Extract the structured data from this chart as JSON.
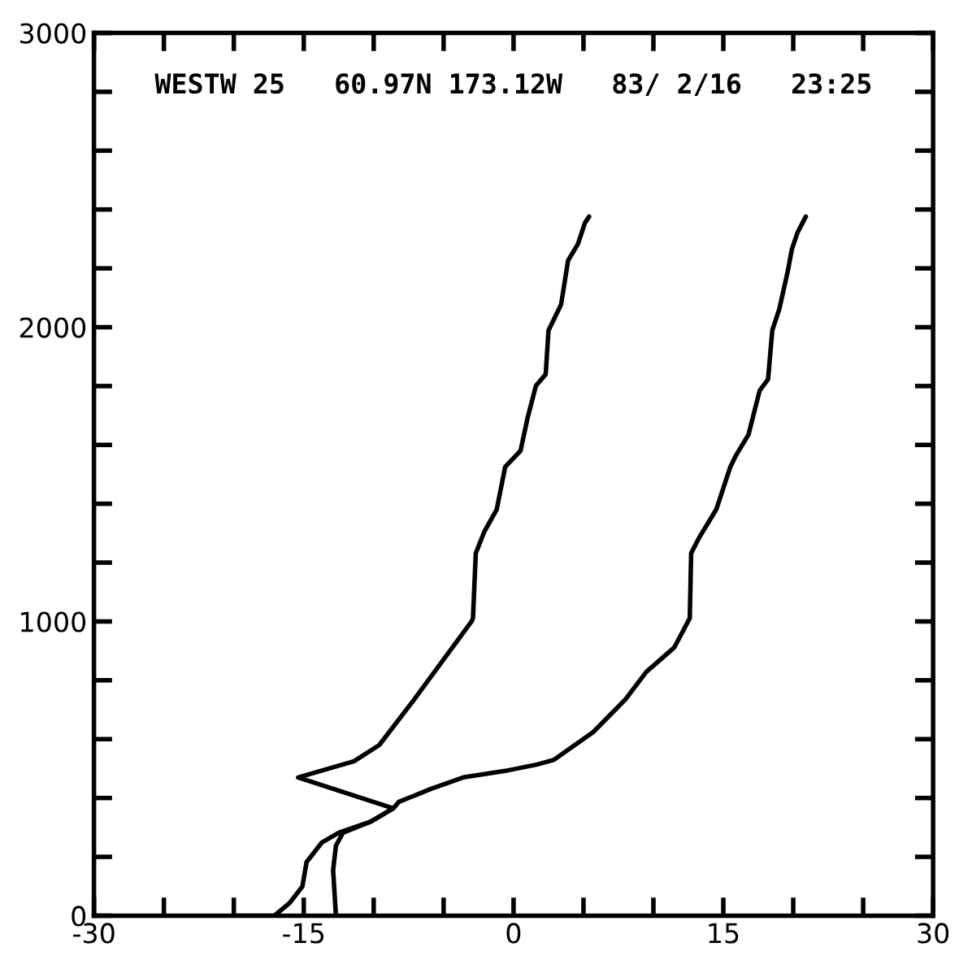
{
  "chart_data": {
    "type": "line",
    "annotations": [
      "WESTW 25   60.97N 173.12W   83/ 2/16   23:25"
    ],
    "xlim": [
      -30,
      30
    ],
    "xticks": [
      -30,
      {
        "value": -25,
        "label": null
      },
      {
        "value": -20,
        "label": null
      },
      -15,
      {
        "value": -10,
        "label": null
      },
      {
        "value": -5,
        "label": null
      },
      0,
      {
        "value": 5,
        "label": null
      },
      {
        "value": 10,
        "label": null
      },
      15,
      {
        "value": 20,
        "label": null
      },
      {
        "value": 25,
        "label": null
      },
      30
    ],
    "ylim": [
      0,
      3000
    ],
    "yticks": [
      0,
      {
        "value": 200,
        "label": null
      },
      {
        "value": 400,
        "label": null
      },
      {
        "value": 600,
        "label": null
      },
      {
        "value": 800,
        "label": null
      },
      1000,
      {
        "value": 1200,
        "label": null
      },
      {
        "value": 1400,
        "label": null
      },
      {
        "value": 1600,
        "label": null
      },
      {
        "value": 1800,
        "label": null
      },
      2000,
      {
        "value": 2200,
        "label": null
      },
      {
        "value": 2400,
        "label": null
      },
      {
        "value": 2600,
        "label": null
      },
      {
        "value": 2800,
        "label": null
      },
      3000
    ],
    "grid": false,
    "marker": "none",
    "line_style": "solid",
    "series": [
      {
        "color": "#000000",
        "x": [
          -12.7,
          -12.9,
          -12.7,
          -12.2,
          -10.2,
          -8.6,
          -8.2,
          -5.9,
          -3.6,
          -0.6,
          1.7,
          2.9,
          4.9,
          5.7,
          8.0,
          9.5,
          11.5,
          12.6,
          12.7,
          13.3,
          14.5,
          15.5,
          15.9,
          16.8,
          17.6,
          18.2,
          18.5,
          19.0,
          19.6,
          19.9,
          20.3,
          20.9
        ],
        "values": [
          0,
          155,
          238,
          282,
          320,
          365,
          387,
          431,
          470,
          492,
          514,
          530,
          597,
          624,
          735,
          829,
          912,
          1011,
          1232,
          1287,
          1381,
          1525,
          1564,
          1635,
          1785,
          1823,
          1989,
          2061,
          2188,
          2265,
          2321,
          2376
        ]
      },
      {
        "color": "#000000",
        "x": [
          -20.0,
          -17.1,
          -16.0,
          -15.1,
          -14.8,
          -13.7,
          -12.5,
          -10.2,
          -8.6,
          -15.4,
          -11.4,
          -9.6,
          -7.1,
          -3.0,
          -2.9,
          -2.7,
          -2.1,
          -1.2,
          -0.6,
          0.5,
          1.0,
          1.6,
          2.3,
          2.5,
          3.4,
          3.9,
          4.6,
          5.1,
          5.4
        ],
        "values": [
          0,
          0,
          44,
          99,
          182,
          249,
          282,
          320,
          365,
          470,
          525,
          580,
          735,
          1000,
          1011,
          1232,
          1304,
          1381,
          1525,
          1580,
          1691,
          1801,
          1840,
          1989,
          2077,
          2227,
          2282,
          2354,
          2376
        ]
      }
    ]
  }
}
